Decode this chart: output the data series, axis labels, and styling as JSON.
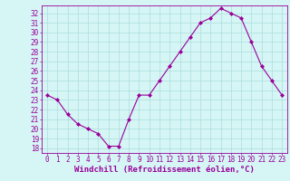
{
  "x": [
    0,
    1,
    2,
    3,
    4,
    5,
    6,
    7,
    8,
    9,
    10,
    11,
    12,
    13,
    14,
    15,
    16,
    17,
    18,
    19,
    20,
    21,
    22,
    23
  ],
  "y": [
    23.5,
    23.0,
    21.5,
    20.5,
    20.0,
    19.5,
    18.2,
    18.2,
    21.0,
    23.5,
    23.5,
    25.0,
    26.5,
    28.0,
    29.5,
    31.0,
    31.5,
    32.5,
    32.0,
    31.5,
    29.0,
    26.5,
    25.0,
    23.5
  ],
  "line_color": "#990099",
  "marker": "D",
  "marker_size": 2,
  "bg_color": "#d6f5f5",
  "grid_color": "#aadddd",
  "xlabel": "Windchill (Refroidissement éolien,°C)",
  "ylabel_ticks": [
    18,
    19,
    20,
    21,
    22,
    23,
    24,
    25,
    26,
    27,
    28,
    29,
    30,
    31,
    32
  ],
  "ylim": [
    17.5,
    32.8
  ],
  "xlim": [
    -0.5,
    23.5
  ],
  "xtick_labels": [
    "0",
    "1",
    "2",
    "3",
    "4",
    "5",
    "6",
    "7",
    "8",
    "9",
    "10",
    "11",
    "12",
    "13",
    "14",
    "15",
    "16",
    "17",
    "18",
    "19",
    "20",
    "21",
    "22",
    "23"
  ],
  "xlabel_color": "#990099",
  "tick_color": "#990099",
  "tick_fontsize": 5.5,
  "xlabel_fontsize": 6.5
}
